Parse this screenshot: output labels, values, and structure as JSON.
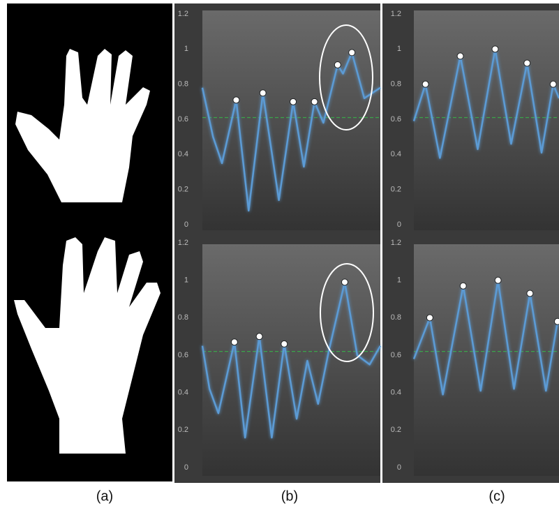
{
  "panel_labels": [
    "(a)",
    "(b)",
    "(c)"
  ],
  "chart_data": [
    {
      "type": "line",
      "xlim": [
        0,
        100
      ],
      "ylim": [
        0,
        1.2
      ],
      "yticks": [
        0,
        0.2,
        0.4,
        0.6,
        0.8,
        1,
        1.2
      ],
      "color": "#5b9bd5",
      "x": [
        0,
        6,
        11,
        19,
        26,
        34,
        43,
        51,
        57,
        63,
        68,
        76,
        79,
        84,
        91,
        100
      ],
      "values": [
        0.78,
        0.5,
        0.35,
        0.71,
        0.08,
        0.75,
        0.14,
        0.7,
        0.33,
        0.7,
        0.58,
        0.91,
        0.86,
        0.98,
        0.72,
        0.78
      ],
      "peaks": {
        "x": [
          19,
          34,
          51,
          63,
          76,
          84
        ],
        "values": [
          0.71,
          0.75,
          0.7,
          0.7,
          0.91,
          0.98
        ]
      },
      "threshold": 0.61,
      "threshold_color": "#3aa64a"
    },
    {
      "type": "line",
      "xlim": [
        0,
        100
      ],
      "ylim": [
        0,
        1.2
      ],
      "yticks": [
        0,
        0.2,
        0.4,
        0.6,
        0.8,
        1,
        1.2
      ],
      "color": "#5b9bd5",
      "x": [
        0,
        8,
        18,
        32,
        44,
        56,
        67,
        78,
        88,
        96,
        100
      ],
      "values": [
        0.59,
        0.8,
        0.38,
        0.96,
        0.43,
        1.0,
        0.46,
        0.92,
        0.41,
        0.8,
        0.72
      ],
      "peaks": {
        "x": [
          8,
          32,
          56,
          78,
          96
        ],
        "values": [
          0.8,
          0.96,
          1.0,
          0.92,
          0.8
        ]
      },
      "threshold": 0.61,
      "threshold_color": "#3aa64a"
    },
    {
      "type": "line",
      "xlim": [
        0,
        100
      ],
      "ylim": [
        0,
        1.2
      ],
      "yticks": [
        0,
        0.2,
        0.4,
        0.6,
        0.8,
        1,
        1.2
      ],
      "color": "#5b9bd5",
      "x": [
        0,
        4,
        9,
        18,
        24,
        32,
        39,
        46,
        53,
        59,
        65,
        71,
        80,
        87,
        94,
        100
      ],
      "values": [
        0.65,
        0.42,
        0.29,
        0.67,
        0.16,
        0.7,
        0.16,
        0.66,
        0.26,
        0.57,
        0.34,
        0.62,
        0.99,
        0.6,
        0.55,
        0.65
      ],
      "peaks": {
        "x": [
          18,
          32,
          46,
          80
        ],
        "values": [
          0.67,
          0.7,
          0.66,
          0.99
        ]
      },
      "threshold": 0.62,
      "threshold_color": "#3aa64a"
    },
    {
      "type": "line",
      "xlim": [
        0,
        100
      ],
      "ylim": [
        0,
        1.2
      ],
      "yticks": [
        0,
        0.2,
        0.4,
        0.6,
        0.8,
        1,
        1.2
      ],
      "color": "#5b9bd5",
      "x": [
        0,
        11,
        20,
        34,
        46,
        58,
        69,
        80,
        91,
        99,
        100
      ],
      "values": [
        0.58,
        0.8,
        0.39,
        0.97,
        0.41,
        1.0,
        0.42,
        0.93,
        0.41,
        0.78,
        0.76
      ],
      "peaks": {
        "x": [
          11,
          34,
          58,
          80,
          99
        ],
        "values": [
          0.8,
          0.97,
          1.0,
          0.93,
          0.78
        ]
      },
      "threshold": 0.62,
      "threshold_color": "#3aa64a"
    }
  ]
}
